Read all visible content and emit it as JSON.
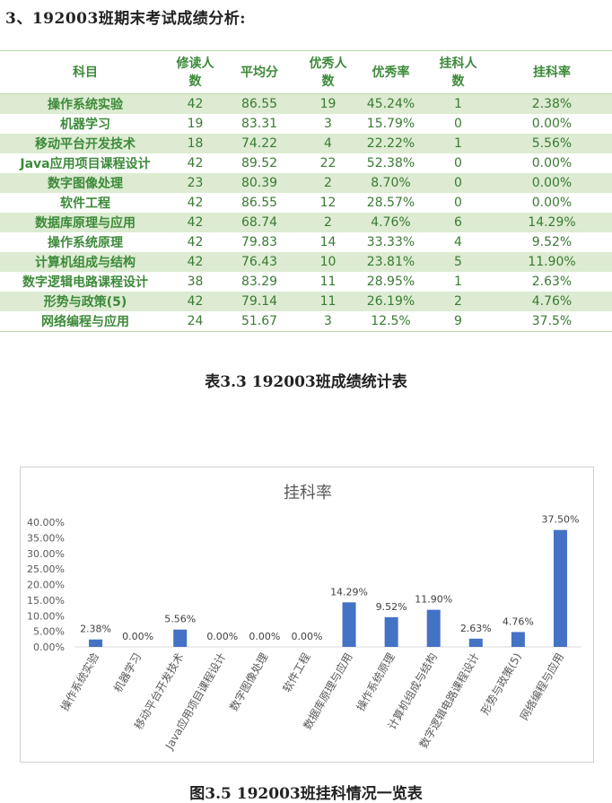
{
  "heading": "3、192003班期末考试成绩分析:",
  "table": {
    "headers": [
      "科目",
      "修读人\n数",
      "平均分",
      "优秀人\n数",
      "优秀率",
      "挂科人\n数",
      "挂科率"
    ],
    "rows": [
      [
        "操作系统实验",
        "42",
        "86.55",
        "19",
        "45.24%",
        "1",
        "2.38%"
      ],
      [
        "机器学习",
        "19",
        "83.31",
        "3",
        "15.79%",
        "0",
        "0.00%"
      ],
      [
        "移动平台开发技术",
        "18",
        "74.22",
        "4",
        "22.22%",
        "1",
        "5.56%"
      ],
      [
        "Java应用项目课程设计",
        "42",
        "89.52",
        "22",
        "52.38%",
        "0",
        "0.00%"
      ],
      [
        "数字图像处理",
        "23",
        "80.39",
        "2",
        "8.70%",
        "0",
        "0.00%"
      ],
      [
        "软件工程",
        "42",
        "86.55",
        "12",
        "28.57%",
        "0",
        "0.00%"
      ],
      [
        "数据库原理与应用",
        "42",
        "68.74",
        "2",
        "4.76%",
        "6",
        "14.29%"
      ],
      [
        "操作系统原理",
        "42",
        "79.83",
        "14",
        "33.33%",
        "4",
        "9.52%"
      ],
      [
        "计算机组成与结构",
        "42",
        "76.43",
        "10",
        "23.81%",
        "5",
        "11.90%"
      ],
      [
        "数字逻辑电路课程设计",
        "38",
        "83.29",
        "11",
        "28.95%",
        "1",
        "2.63%"
      ],
      [
        "形势与政策(5)",
        "42",
        "79.14",
        "11",
        "26.19%",
        "2",
        "4.76%"
      ],
      [
        "网络编程与应用",
        "24",
        "51.67",
        "3",
        "12.5%",
        "9",
        "37.5%"
      ]
    ]
  },
  "table_caption": "表3.3 192003班成绩统计表",
  "figure_caption": "图3.5 192003班挂科情况一览表",
  "chart_data": {
    "type": "bar",
    "title": "挂科率",
    "xlabel": "",
    "ylabel": "",
    "categories": [
      "操作系统实验",
      "机器学习",
      "移动平台开发技术",
      "Java应用项目课程设计",
      "数字图像处理",
      "软件工程",
      "数据库原理与应用",
      "操作系统原理",
      "计算机组成与结构",
      "数字逻辑电路课程设计",
      "形势与政策(5)",
      "网络编程与应用"
    ],
    "values": [
      2.38,
      0.0,
      5.56,
      0.0,
      0.0,
      0.0,
      14.29,
      9.52,
      11.9,
      2.63,
      4.76,
      37.5
    ],
    "data_labels": [
      "2.38%",
      "0.00%",
      "5.56%",
      "0.00%",
      "0.00%",
      "0.00%",
      "14.29%",
      "9.52%",
      "11.90%",
      "2.63%",
      "4.76%",
      "37.50%"
    ],
    "y_ticks": [
      "0.00%",
      "5.00%",
      "10.00%",
      "15.00%",
      "20.00%",
      "25.00%",
      "30.00%",
      "35.00%",
      "40.00%"
    ],
    "ylim": [
      0,
      40
    ],
    "grid": false,
    "legend": "none",
    "bar_color": "#4472c4"
  }
}
